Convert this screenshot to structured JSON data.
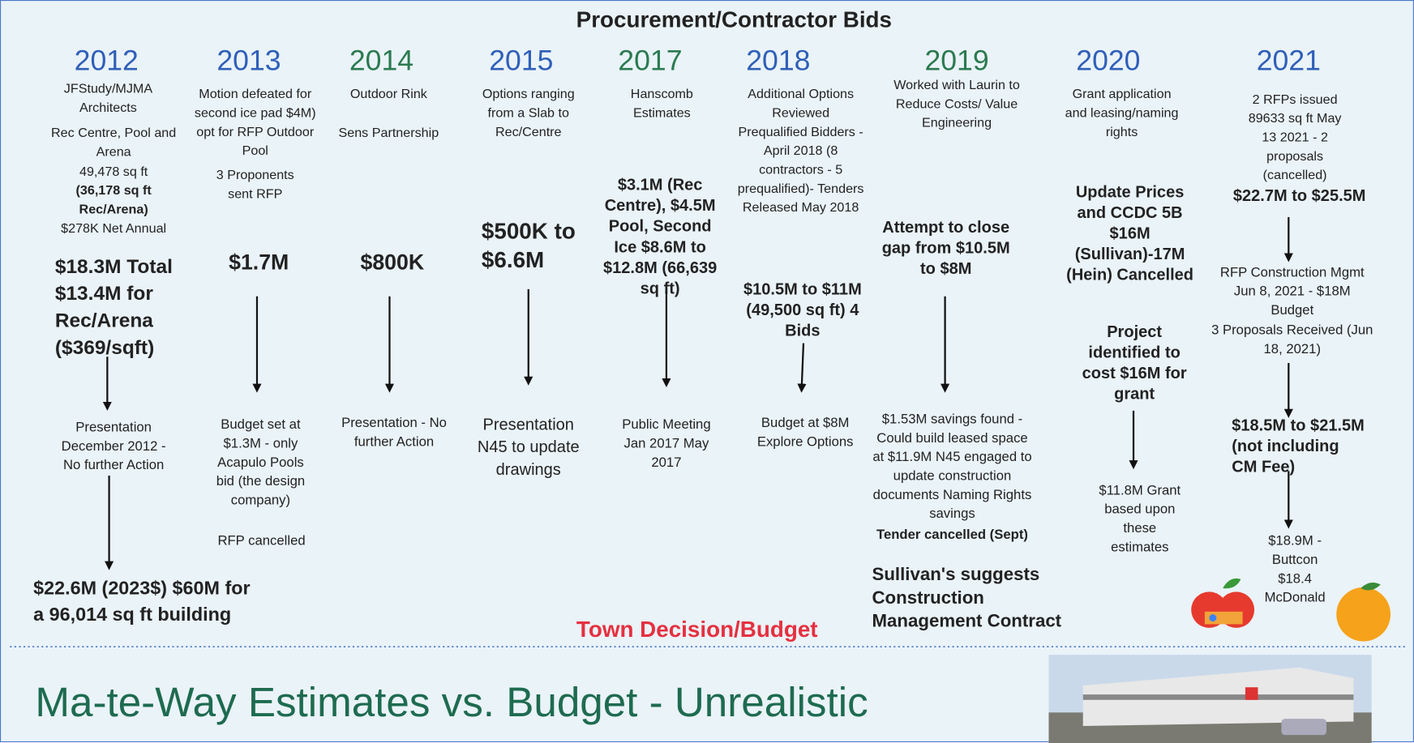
{
  "title": "Procurement/Contractor Bids",
  "columns": [
    {
      "year": "2012",
      "notes": [
        "JFStudy/MJMA Architects",
        "Rec Centre, Pool and Arena",
        "49,478 sq ft",
        "(36,178 sq ft Rec/Arena)",
        "$278K Net Annual",
        "$18.3M Total $13.4M for Rec/Arena ($369/sqft)",
        "Presentation December 2012 - No further Action",
        "$22.6M (2023$) $60M for a 96,014 sq ft building"
      ]
    },
    {
      "year": "2013",
      "notes": [
        "Motion defeated for second ice pad $4M) opt for RFP Outdoor Pool",
        "3 Proponents sent RFP",
        "$1.7M",
        "Budget set at $1.3M - only Acapulo Pools bid (the design company)",
        "RFP cancelled"
      ]
    },
    {
      "year": "2014",
      "notes": [
        "Outdoor Rink",
        "Sens Partnership",
        "$800K",
        "Presentation - No further Action"
      ]
    },
    {
      "year": "2015",
      "notes": [
        "Options ranging from a Slab to Rec/Centre",
        "$500K to $6.6M",
        "Presentation N45 to update drawings"
      ]
    },
    {
      "year": "2017",
      "notes": [
        "Hanscomb Estimates",
        "$3.1M (Rec Centre), $4.5M Pool, Second Ice $8.6M to $12.8M (66,639 sq ft)",
        "Public Meeting Jan 2017 May 2017"
      ]
    },
    {
      "year": "2018",
      "notes": [
        "Additional Options Reviewed Prequalified Bidders - April 2018 (8 contractors - 5 prequalified)- Tenders Released May 2018",
        "$10.5M to $11M (49,500 sq ft) 4 Bids",
        "Budget at $8M Explore Options"
      ]
    },
    {
      "year": "2019",
      "notes": [
        "Worked with Laurin to Reduce Costs/ Value Engineering",
        "Attempt to close gap from $10.5M to $8M",
        "$1.53M savings found - Could build leased space at $11.9M N45 engaged to update construction documents Naming Rights savings",
        "Tender cancelled (Sept)",
        "Sullivan's suggests Construction Management Contract"
      ]
    },
    {
      "year": "2020",
      "notes": [
        "Grant application and leasing/naming rights",
        "Update Prices and CCDC 5B $16M (Sullivan)-17M (Hein) Cancelled",
        "Project identified to cost $16M for grant",
        "$11.8M Grant based upon these estimates"
      ]
    },
    {
      "year": "2021",
      "notes": [
        "2 RFPs issued 89633 sq ft May 13 2021 - 2 proposals (cancelled)",
        "$22.7M to $25.5M",
        "RFP Construction Mgmt Jun 8, 2021 - $18M Budget",
        "3 Proposals Received (Jun 18, 2021)",
        "$18.5M to $21.5M (not including CM Fee)",
        "$18.9M - Buttcon $18.4 McDonald"
      ]
    }
  ],
  "decision": "Town Decision/Budget",
  "footer": "Ma-te-Way Estimates vs. Budget - Unrealistic"
}
